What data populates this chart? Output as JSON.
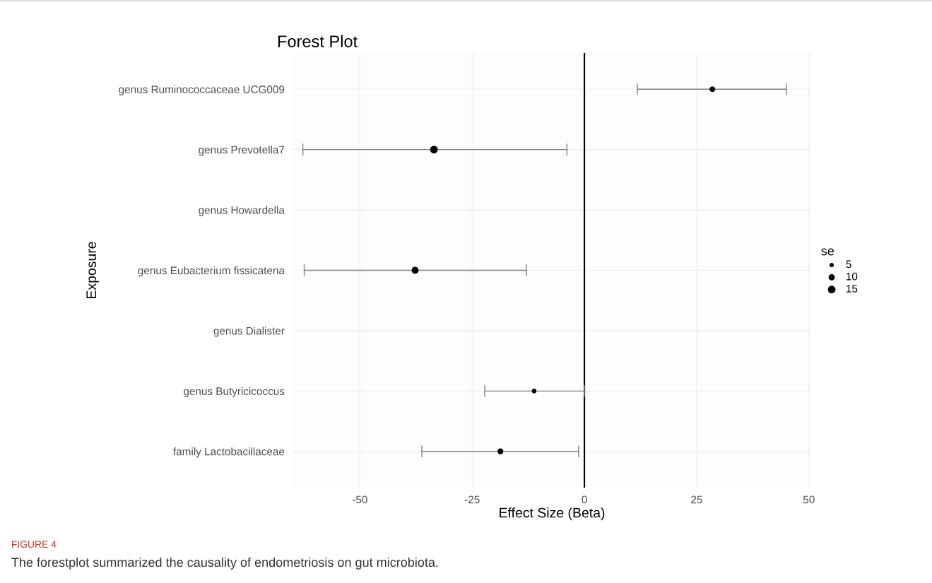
{
  "chart_data": {
    "type": "bubble",
    "orientation": "horizontal",
    "title": "Forest Plot",
    "xlabel": "Effect Size (Beta)",
    "ylabel": "Exposure",
    "categories": [
      "genus Ruminococcaceae UCG009",
      "genus Prevotella7",
      "genus Howardella",
      "genus Eubacterium fissicatena",
      "genus Dialister",
      "genus Butyricicoccus",
      "family Lactobacillaceae"
    ],
    "series": [
      {
        "color": "#000000",
        "values": [
          28.5,
          -33.5,
          null,
          -37.7,
          null,
          -11.2,
          -18.7
        ],
        "sizes": [
          8.5,
          15,
          null,
          12.6,
          null,
          5.7,
          8.9
        ],
        "errors": [
          [
            11.8,
            45.0
          ],
          [
            -62.7,
            -3.9
          ],
          null,
          [
            -62.4,
            -12.9
          ],
          null,
          [
            -22.2,
            0
          ],
          [
            -36.2,
            -1.3
          ]
        ]
      }
    ],
    "size_legend": [
      5,
      10,
      15
    ],
    "legend_title": "se",
    "xlim": [
      -65,
      50.5
    ],
    "xticks": [
      -50,
      -25,
      0,
      25,
      50
    ],
    "grid": true,
    "ref_lines": [
      {
        "axis": "x",
        "value": 0,
        "label": null,
        "color": "#000000"
      }
    ],
    "annotations": [
      "FIGURE 4",
      "The forestplot summarized the causality of endometriosis on gut microbiota."
    ]
  }
}
